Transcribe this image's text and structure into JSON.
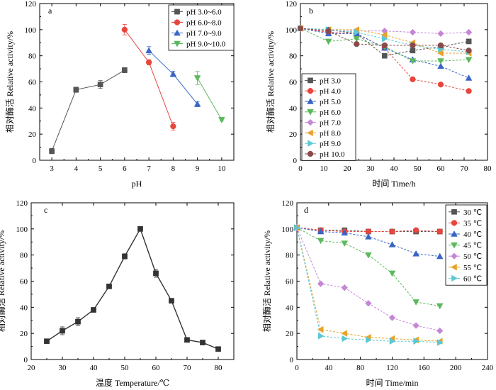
{
  "figure": {
    "colors": {
      "black": "#555555",
      "red": "#e8453c",
      "blue": "#3a65c4",
      "green": "#5cb85c",
      "purple": "#c586d6",
      "orange": "#e8a22a",
      "cyan": "#5bc8d4",
      "brown": "#8b4a4a",
      "darkblue": "#2f4f9e"
    }
  },
  "chart_data": [
    {
      "panel": "a",
      "type": "line",
      "xlabel": "pH",
      "ylabel": "相对酶活 Relative activity/%",
      "xlim": [
        2.5,
        10.5
      ],
      "ylim": [
        0,
        120
      ],
      "xticks": [
        3,
        4,
        5,
        6,
        7,
        8,
        9,
        10
      ],
      "yticks": [
        0,
        20,
        40,
        60,
        80,
        100,
        120
      ],
      "legend_position": "top-right",
      "series": [
        {
          "name": "pH 3.0~6.0",
          "color": "#555555",
          "marker": "square",
          "x": [
            3,
            4,
            5,
            6
          ],
          "y": [
            7,
            54,
            58,
            69
          ],
          "err": [
            2,
            2,
            3,
            2
          ]
        },
        {
          "name": "pH 6.0~8.0",
          "color": "#e8453c",
          "marker": "circle",
          "x": [
            6,
            7,
            8
          ],
          "y": [
            100,
            75,
            26
          ],
          "err": [
            4,
            2,
            3
          ]
        },
        {
          "name": "pH 7.0~9.0",
          "color": "#3a65c4",
          "marker": "triangle-up",
          "x": [
            7,
            8,
            9
          ],
          "y": [
            84,
            66,
            43
          ],
          "err": [
            3,
            2,
            2
          ]
        },
        {
          "name": "pH 9.0~10.0",
          "color": "#5cb85c",
          "marker": "triangle-down",
          "x": [
            9,
            10
          ],
          "y": [
            63,
            31
          ],
          "err": [
            5,
            1
          ]
        }
      ]
    },
    {
      "panel": "b",
      "type": "line",
      "xlabel": "时间 Time/h",
      "ylabel": "相对酶活 Relative activity/%",
      "xlim": [
        0,
        80
      ],
      "ylim": [
        0,
        120
      ],
      "xticks": [
        0,
        10,
        20,
        30,
        40,
        50,
        60,
        70,
        80
      ],
      "yticks": [
        0,
        20,
        40,
        60,
        80,
        100,
        120
      ],
      "legend_position": "bottom-left",
      "x": [
        0,
        12,
        24,
        36,
        48,
        60,
        72
      ],
      "series": [
        {
          "name": "pH 3.0",
          "color": "#555555",
          "marker": "square",
          "y": [
            101,
            100,
            97,
            80,
            84,
            87,
            91
          ]
        },
        {
          "name": "pH 4.0",
          "color": "#e8453c",
          "marker": "circle",
          "y": [
            101,
            98,
            97,
            86,
            62,
            58,
            53
          ]
        },
        {
          "name": "pH 5.0",
          "color": "#3a65c4",
          "marker": "triangle-up",
          "y": [
            101,
            97,
            97,
            86,
            77,
            72,
            63
          ]
        },
        {
          "name": "pH 6.0",
          "color": "#5cb85c",
          "marker": "triangle-down",
          "y": [
            101,
            91,
            93,
            87,
            76,
            76,
            77
          ]
        },
        {
          "name": "pH 7.0",
          "color": "#c586d6",
          "marker": "diamond",
          "y": [
            101,
            99,
            99,
            99,
            98,
            97,
            98
          ]
        },
        {
          "name": "pH 8.0",
          "color": "#e8a22a",
          "marker": "triangle-left",
          "y": [
            101,
            100,
            100,
            96,
            90,
            82,
            82
          ]
        },
        {
          "name": "pH 9.0",
          "color": "#5bc8d4",
          "marker": "triangle-right",
          "y": [
            101,
            100,
            98,
            93,
            88,
            85,
            83
          ]
        },
        {
          "name": "pH 10.0",
          "color": "#8b4a4a",
          "marker": "circle",
          "y": [
            101,
            99,
            89,
            88,
            88,
            88,
            84
          ]
        }
      ]
    },
    {
      "panel": "c",
      "type": "line",
      "xlabel": "温度 Temperature/℃",
      "ylabel": "相对酶活 Relative activity/%",
      "xlim": [
        20,
        85
      ],
      "ylim": [
        0,
        120
      ],
      "xticks": [
        20,
        30,
        40,
        50,
        60,
        70,
        80
      ],
      "yticks": [
        0,
        20,
        40,
        60,
        80,
        100,
        120
      ],
      "series": [
        {
          "name": "temperature",
          "color": "#333333",
          "marker": "square",
          "x": [
            25,
            30,
            35,
            40,
            45,
            50,
            55,
            60,
            65,
            70,
            75,
            80
          ],
          "y": [
            14,
            22,
            29,
            38,
            56,
            79,
            100,
            66,
            45,
            15,
            13,
            8
          ],
          "err": [
            1,
            3,
            3,
            1,
            1,
            2,
            1,
            3,
            1,
            1,
            1,
            1
          ]
        }
      ]
    },
    {
      "panel": "d",
      "type": "line",
      "xlabel": "时间 Time/min",
      "ylabel": "相对酶活 Relative activity/%",
      "xlim": [
        0,
        240
      ],
      "ylim": [
        0,
        120
      ],
      "xticks": [
        0,
        40,
        80,
        120,
        160,
        200,
        240
      ],
      "yticks": [
        0,
        20,
        40,
        60,
        80,
        100,
        120
      ],
      "legend_position": "top-right",
      "x": [
        0,
        30,
        60,
        90,
        120,
        150,
        180
      ],
      "series": [
        {
          "name": "30 ℃",
          "color": "#555555",
          "marker": "square",
          "y": [
            101,
            99,
            99,
            98,
            98,
            98,
            98
          ]
        },
        {
          "name": "35 ℃",
          "color": "#e8453c",
          "marker": "circle",
          "y": [
            101,
            99,
            98,
            98,
            98,
            99,
            98
          ]
        },
        {
          "name": "40 ℃",
          "color": "#3a65c4",
          "marker": "triangle-up",
          "y": [
            101,
            98,
            97,
            94,
            88,
            81,
            79
          ]
        },
        {
          "name": "45 ℃",
          "color": "#5cb85c",
          "marker": "triangle-down",
          "y": [
            101,
            91,
            89,
            80,
            66,
            44,
            41
          ]
        },
        {
          "name": "50 ℃",
          "color": "#c586d6",
          "marker": "diamond",
          "y": [
            101,
            58,
            55,
            43,
            32,
            26,
            22
          ]
        },
        {
          "name": "55 ℃",
          "color": "#e8a22a",
          "marker": "triangle-left",
          "y": [
            101,
            23,
            20,
            17,
            16,
            15,
            14
          ]
        },
        {
          "name": "60 ℃",
          "color": "#5bc8d4",
          "marker": "triangle-right",
          "y": [
            101,
            18,
            16,
            15,
            14,
            14,
            13
          ]
        }
      ]
    }
  ]
}
